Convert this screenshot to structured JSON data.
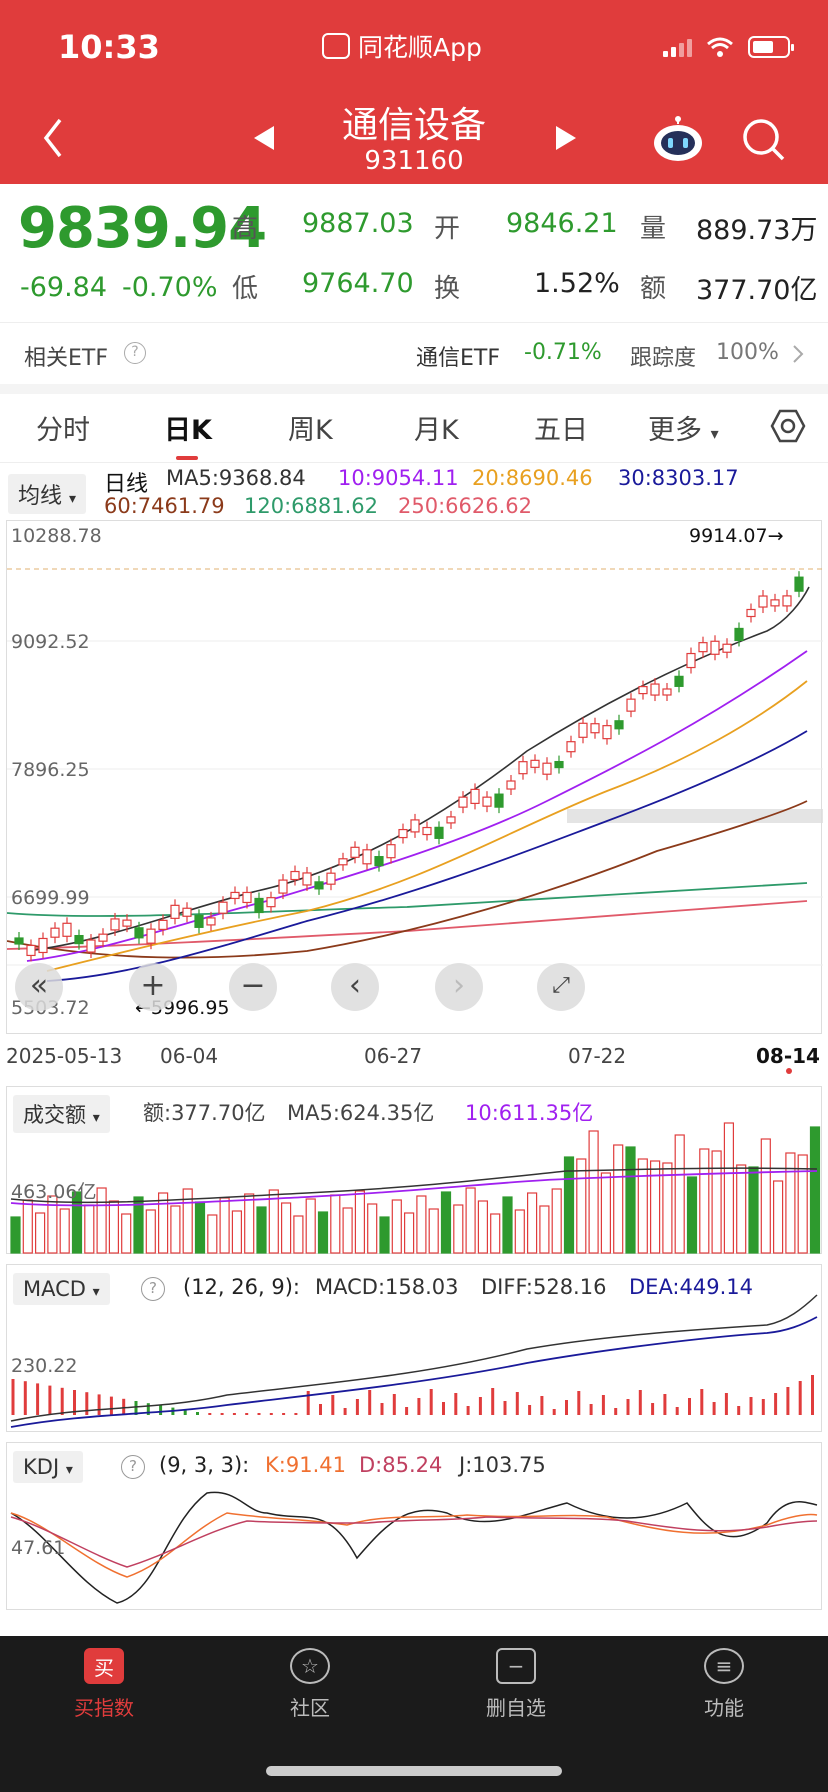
{
  "status_bar": {
    "time": "10:33",
    "app_name": "同花顺App"
  },
  "header": {
    "title": "通信设备",
    "code": "931160"
  },
  "quote": {
    "price": "9839.94",
    "change": "-69.84",
    "change_pct": "-0.70%",
    "high_label": "高",
    "high": "9887.03",
    "low_label": "低",
    "low": "9764.70",
    "open_label": "开",
    "open": "9846.21",
    "turnover_label": "换",
    "turnover": "1.52%",
    "volume_label": "量",
    "volume": "889.73万",
    "amount_label": "额",
    "amount": "377.70亿"
  },
  "etf_row": {
    "label": "相关ETF",
    "etf_name": "通信ETF",
    "etf_change": "-0.71%",
    "track_label": "跟踪度",
    "track_value": "100%"
  },
  "tabs": [
    "分时",
    "日K",
    "周K",
    "月K",
    "五日",
    "更多"
  ],
  "active_tab": "日K",
  "kline": {
    "ma_button": "均线",
    "series_label": "日线",
    "ma5": "MA5:9368.84",
    "ma10": "10:9054.11",
    "ma20": "20:8690.46",
    "ma30": "30:8303.17",
    "ma60": "60:7461.79",
    "ma120": "120:6881.62",
    "ma250": "250:6626.62",
    "y_labels": [
      "10288.78",
      "9092.52",
      "7896.25",
      "6699.99",
      "5503.72"
    ],
    "max_marker": "9914.07→",
    "min_marker": "←5996.95",
    "x_labels": [
      "2025-05-13",
      "06-04",
      "06-27",
      "07-22",
      "08-14"
    ]
  },
  "volume_panel": {
    "selector": "成交额",
    "amount": "额:377.70亿",
    "ma5": "MA5:624.35亿",
    "ma10": "10:611.35亿",
    "y_label": "463.06亿"
  },
  "macd_panel": {
    "selector": "MACD",
    "params": "(12, 26, 9):",
    "macd": "MACD:158.03",
    "diff": "DIFF:528.16",
    "dea": "DEA:449.14",
    "y_label": "230.22"
  },
  "kdj_panel": {
    "selector": "KDJ",
    "params": "(9, 3, 3):",
    "k": "K:91.41",
    "d": "D:85.24",
    "j": "J:103.75",
    "y_label": "47.61"
  },
  "bottom_nav": [
    {
      "label": "买指数",
      "icon": "buy-icon"
    },
    {
      "label": "社区",
      "icon": "community-icon"
    },
    {
      "label": "删自选",
      "icon": "remove-watchlist-icon"
    },
    {
      "label": "功能",
      "icon": "menu-icon"
    }
  ],
  "colors": {
    "header_red": "#e03c3c",
    "up_red": "#e03c3c",
    "down_green": "#2e9a2e",
    "ma5": "#333333",
    "ma10": "#a020f0",
    "ma20": "#f0a020",
    "ma30": "#1a1a9a",
    "ma60": "#8b3a1a",
    "ma120": "#2e9a6a",
    "ma250": "#e05a6a"
  }
}
